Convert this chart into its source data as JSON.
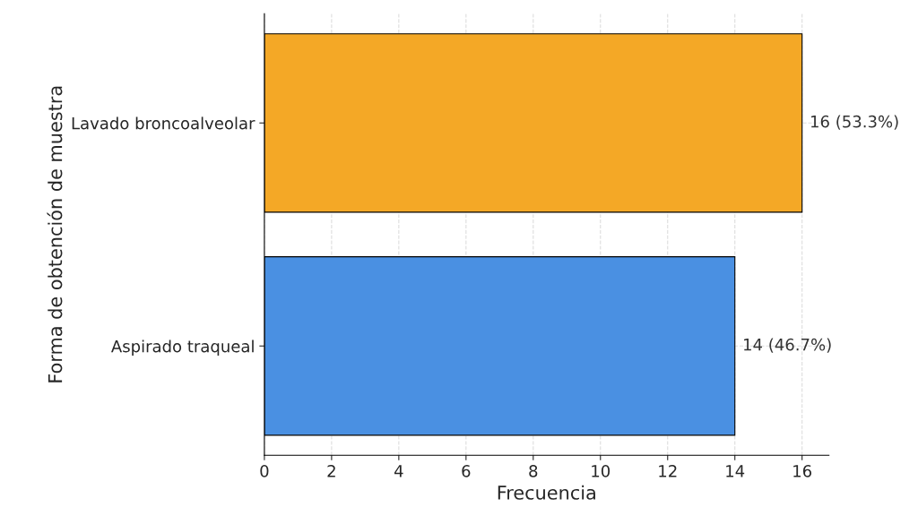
{
  "chart_data": {
    "type": "bar",
    "orientation": "horizontal",
    "categories": [
      "Lavado broncoalveolar",
      "Aspirado traqueal"
    ],
    "values": [
      16,
      14
    ],
    "colors": [
      "#f4a826",
      "#4a90e2"
    ],
    "value_labels": [
      "16 (53.3%)",
      "14 (46.7%)"
    ],
    "xlabel": "Frecuencia",
    "ylabel": "Forma de obtención de muestra",
    "xlim": [
      0,
      16.8
    ],
    "xticks": [
      0,
      2,
      4,
      6,
      8,
      10,
      12,
      14,
      16
    ],
    "grid": true
  }
}
